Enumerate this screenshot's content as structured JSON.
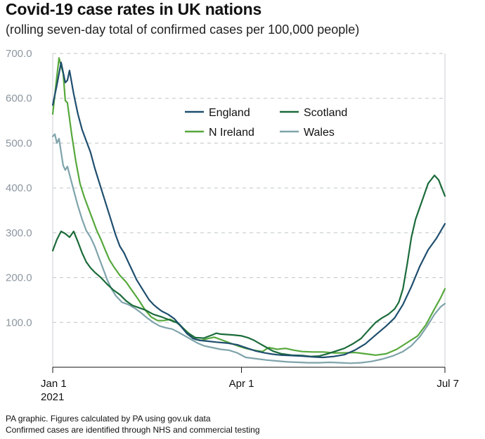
{
  "title": "Covid-19 case rates in UK nations",
  "subtitle": "(rolling seven-day total of confirmed cases per 100,000 people)",
  "footer": {
    "line1": "PA graphic. Figures calculated by PA using gov.uk data",
    "line2": "Confirmed cases are identified through NHS and commercial testing"
  },
  "chart_data": {
    "type": "line",
    "title": "Covid-19 case rates in UK nations",
    "subtitle": "(rolling seven-day total of confirmed cases per 100,000 people)",
    "x_range": [
      "2021-01-01",
      "2021-07-07"
    ],
    "x_ticks": [
      {
        "date": "2021-01-01",
        "label": "Jan 1",
        "sublabel": "2021"
      },
      {
        "date": "2021-04-01",
        "label": "Apr 1",
        "sublabel": ""
      },
      {
        "date": "2021-07-07",
        "label": "Jul 7",
        "sublabel": ""
      }
    ],
    "ylim": [
      0,
      700
    ],
    "y_ticks": [
      {
        "value": 100,
        "label": "100.0"
      },
      {
        "value": 200,
        "label": "200.0"
      },
      {
        "value": 300,
        "label": "300.0"
      },
      {
        "value": 400,
        "label": "400.0"
      },
      {
        "value": 500,
        "label": "500.0"
      },
      {
        "value": 600,
        "label": "600.0"
      },
      {
        "value": 700,
        "label": "700.0"
      }
    ],
    "grid": "horizontal-dashed",
    "legend": "top-center",
    "series": [
      {
        "name": "England",
        "color": "#1f4e6e",
        "points": [
          [
            "2021-01-01",
            585
          ],
          [
            "2021-01-03",
            630
          ],
          [
            "2021-01-05",
            680
          ],
          [
            "2021-01-07",
            635
          ],
          [
            "2021-01-08",
            640
          ],
          [
            "2021-01-09",
            662
          ],
          [
            "2021-01-11",
            610
          ],
          [
            "2021-01-13",
            565
          ],
          [
            "2021-01-15",
            530
          ],
          [
            "2021-01-17",
            505
          ],
          [
            "2021-01-19",
            480
          ],
          [
            "2021-01-21",
            445
          ],
          [
            "2021-01-23",
            415
          ],
          [
            "2021-01-25",
            385
          ],
          [
            "2021-01-27",
            355
          ],
          [
            "2021-01-29",
            325
          ],
          [
            "2021-01-31",
            295
          ],
          [
            "2021-02-02",
            270
          ],
          [
            "2021-02-04",
            255
          ],
          [
            "2021-02-06",
            235
          ],
          [
            "2021-02-08",
            215
          ],
          [
            "2021-02-10",
            195
          ],
          [
            "2021-02-12",
            180
          ],
          [
            "2021-02-14",
            165
          ],
          [
            "2021-02-16",
            150
          ],
          [
            "2021-02-18",
            140
          ],
          [
            "2021-02-20",
            132
          ],
          [
            "2021-02-22",
            125
          ],
          [
            "2021-02-25",
            118
          ],
          [
            "2021-02-28",
            108
          ],
          [
            "2021-03-03",
            92
          ],
          [
            "2021-03-06",
            75
          ],
          [
            "2021-03-09",
            64
          ],
          [
            "2021-03-12",
            60
          ],
          [
            "2021-03-16",
            58
          ],
          [
            "2021-03-20",
            56
          ],
          [
            "2021-03-25",
            54
          ],
          [
            "2021-03-30",
            50
          ],
          [
            "2021-04-04",
            42
          ],
          [
            "2021-04-08",
            36
          ],
          [
            "2021-04-12",
            32
          ],
          [
            "2021-04-16",
            29
          ],
          [
            "2021-04-20",
            27
          ],
          [
            "2021-04-25",
            26
          ],
          [
            "2021-04-30",
            25
          ],
          [
            "2021-05-05",
            23
          ],
          [
            "2021-05-10",
            22
          ],
          [
            "2021-05-15",
            24
          ],
          [
            "2021-05-20",
            28
          ],
          [
            "2021-05-25",
            38
          ],
          [
            "2021-05-30",
            52
          ],
          [
            "2021-06-04",
            72
          ],
          [
            "2021-06-09",
            92
          ],
          [
            "2021-06-13",
            110
          ],
          [
            "2021-06-17",
            140
          ],
          [
            "2021-06-21",
            180
          ],
          [
            "2021-06-25",
            225
          ],
          [
            "2021-06-29",
            262
          ],
          [
            "2021-07-03",
            288
          ],
          [
            "2021-07-07",
            320
          ]
        ]
      },
      {
        "name": "Scotland",
        "color": "#1b6b3a",
        "points": [
          [
            "2021-01-01",
            260
          ],
          [
            "2021-01-03",
            285
          ],
          [
            "2021-01-05",
            303
          ],
          [
            "2021-01-07",
            298
          ],
          [
            "2021-01-09",
            290
          ],
          [
            "2021-01-11",
            303
          ],
          [
            "2021-01-13",
            280
          ],
          [
            "2021-01-15",
            255
          ],
          [
            "2021-01-17",
            235
          ],
          [
            "2021-01-19",
            222
          ],
          [
            "2021-01-21",
            212
          ],
          [
            "2021-01-24",
            200
          ],
          [
            "2021-01-27",
            185
          ],
          [
            "2021-01-30",
            172
          ],
          [
            "2021-02-02",
            162
          ],
          [
            "2021-02-05",
            148
          ],
          [
            "2021-02-08",
            138
          ],
          [
            "2021-02-11",
            133
          ],
          [
            "2021-02-14",
            128
          ],
          [
            "2021-02-18",
            118
          ],
          [
            "2021-02-22",
            112
          ],
          [
            "2021-02-26",
            105
          ],
          [
            "2021-03-02",
            98
          ],
          [
            "2021-03-06",
            78
          ],
          [
            "2021-03-10",
            66
          ],
          [
            "2021-03-14",
            65
          ],
          [
            "2021-03-18",
            72
          ],
          [
            "2021-03-20",
            76
          ],
          [
            "2021-03-22",
            74
          ],
          [
            "2021-03-25",
            73
          ],
          [
            "2021-03-28",
            72
          ],
          [
            "2021-04-01",
            70
          ],
          [
            "2021-04-04",
            66
          ],
          [
            "2021-04-07",
            60
          ],
          [
            "2021-04-10",
            52
          ],
          [
            "2021-04-13",
            44
          ],
          [
            "2021-04-16",
            36
          ],
          [
            "2021-04-20",
            30
          ],
          [
            "2021-04-25",
            27
          ],
          [
            "2021-04-30",
            26
          ],
          [
            "2021-05-04",
            24
          ],
          [
            "2021-05-08",
            25
          ],
          [
            "2021-05-12",
            30
          ],
          [
            "2021-05-16",
            36
          ],
          [
            "2021-05-20",
            42
          ],
          [
            "2021-05-24",
            52
          ],
          [
            "2021-05-28",
            64
          ],
          [
            "2021-06-01",
            85
          ],
          [
            "2021-06-04",
            100
          ],
          [
            "2021-06-07",
            110
          ],
          [
            "2021-06-10",
            118
          ],
          [
            "2021-06-13",
            130
          ],
          [
            "2021-06-15",
            145
          ],
          [
            "2021-06-17",
            175
          ],
          [
            "2021-06-19",
            230
          ],
          [
            "2021-06-21",
            290
          ],
          [
            "2021-06-23",
            330
          ],
          [
            "2021-06-26",
            370
          ],
          [
            "2021-06-29",
            410
          ],
          [
            "2021-07-02",
            428
          ],
          [
            "2021-07-04",
            418
          ],
          [
            "2021-07-07",
            382
          ]
        ]
      },
      {
        "name": "N Ireland",
        "color": "#56a83c",
        "points": [
          [
            "2021-01-01",
            565
          ],
          [
            "2021-01-03",
            650
          ],
          [
            "2021-01-04",
            690
          ],
          [
            "2021-01-06",
            655
          ],
          [
            "2021-01-07",
            595
          ],
          [
            "2021-01-08",
            590
          ],
          [
            "2021-01-10",
            520
          ],
          [
            "2021-01-12",
            460
          ],
          [
            "2021-01-14",
            410
          ],
          [
            "2021-01-16",
            380
          ],
          [
            "2021-01-18",
            355
          ],
          [
            "2021-01-20",
            330
          ],
          [
            "2021-01-22",
            305
          ],
          [
            "2021-01-24",
            285
          ],
          [
            "2021-01-26",
            262
          ],
          [
            "2021-01-28",
            240
          ],
          [
            "2021-01-30",
            225
          ],
          [
            "2021-02-02",
            205
          ],
          [
            "2021-02-05",
            190
          ],
          [
            "2021-02-08",
            170
          ],
          [
            "2021-02-11",
            150
          ],
          [
            "2021-02-14",
            128
          ],
          [
            "2021-02-17",
            112
          ],
          [
            "2021-02-20",
            104
          ],
          [
            "2021-02-23",
            104
          ],
          [
            "2021-02-26",
            107
          ],
          [
            "2021-03-01",
            100
          ],
          [
            "2021-03-04",
            88
          ],
          [
            "2021-03-07",
            75
          ],
          [
            "2021-03-10",
            62
          ],
          [
            "2021-03-13",
            60
          ],
          [
            "2021-03-16",
            64
          ],
          [
            "2021-03-19",
            67
          ],
          [
            "2021-03-22",
            62
          ],
          [
            "2021-03-26",
            55
          ],
          [
            "2021-03-30",
            48
          ],
          [
            "2021-04-03",
            42
          ],
          [
            "2021-04-07",
            38
          ],
          [
            "2021-04-11",
            35
          ],
          [
            "2021-04-14",
            44
          ],
          [
            "2021-04-18",
            40
          ],
          [
            "2021-04-22",
            42
          ],
          [
            "2021-04-26",
            38
          ],
          [
            "2021-04-30",
            35
          ],
          [
            "2021-05-05",
            34
          ],
          [
            "2021-05-10",
            34
          ],
          [
            "2021-05-15",
            32
          ],
          [
            "2021-05-20",
            32
          ],
          [
            "2021-05-25",
            33
          ],
          [
            "2021-05-30",
            30
          ],
          [
            "2021-06-04",
            27
          ],
          [
            "2021-06-09",
            30
          ],
          [
            "2021-06-14",
            40
          ],
          [
            "2021-06-19",
            55
          ],
          [
            "2021-06-24",
            70
          ],
          [
            "2021-06-28",
            95
          ],
          [
            "2021-07-02",
            130
          ],
          [
            "2021-07-05",
            155
          ],
          [
            "2021-07-07",
            175
          ]
        ]
      },
      {
        "name": "Wales",
        "color": "#7fa3ab",
        "points": [
          [
            "2021-01-01",
            515
          ],
          [
            "2021-01-02",
            520
          ],
          [
            "2021-01-03",
            500
          ],
          [
            "2021-01-04",
            510
          ],
          [
            "2021-01-05",
            480
          ],
          [
            "2021-01-06",
            450
          ],
          [
            "2021-01-07",
            440
          ],
          [
            "2021-01-08",
            448
          ],
          [
            "2021-01-09",
            430
          ],
          [
            "2021-01-11",
            395
          ],
          [
            "2021-01-13",
            360
          ],
          [
            "2021-01-15",
            330
          ],
          [
            "2021-01-17",
            305
          ],
          [
            "2021-01-19",
            290
          ],
          [
            "2021-01-21",
            270
          ],
          [
            "2021-01-23",
            245
          ],
          [
            "2021-01-25",
            220
          ],
          [
            "2021-01-27",
            195
          ],
          [
            "2021-01-29",
            175
          ],
          [
            "2021-01-31",
            160
          ],
          [
            "2021-02-03",
            145
          ],
          [
            "2021-02-06",
            140
          ],
          [
            "2021-02-09",
            132
          ],
          [
            "2021-02-12",
            122
          ],
          [
            "2021-02-15",
            110
          ],
          [
            "2021-02-18",
            100
          ],
          [
            "2021-02-21",
            92
          ],
          [
            "2021-02-24",
            88
          ],
          [
            "2021-02-27",
            85
          ],
          [
            "2021-03-02",
            78
          ],
          [
            "2021-03-05",
            70
          ],
          [
            "2021-03-08",
            62
          ],
          [
            "2021-03-11",
            54
          ],
          [
            "2021-03-14",
            48
          ],
          [
            "2021-03-18",
            44
          ],
          [
            "2021-03-22",
            40
          ],
          [
            "2021-03-26",
            38
          ],
          [
            "2021-03-30",
            32
          ],
          [
            "2021-04-03",
            22
          ],
          [
            "2021-04-08",
            19
          ],
          [
            "2021-04-13",
            16
          ],
          [
            "2021-04-18",
            14
          ],
          [
            "2021-04-23",
            12
          ],
          [
            "2021-04-28",
            11
          ],
          [
            "2021-05-03",
            10
          ],
          [
            "2021-05-08",
            10
          ],
          [
            "2021-05-13",
            11
          ],
          [
            "2021-05-18",
            10
          ],
          [
            "2021-05-23",
            9
          ],
          [
            "2021-05-28",
            10
          ],
          [
            "2021-06-02",
            13
          ],
          [
            "2021-06-07",
            18
          ],
          [
            "2021-06-12",
            25
          ],
          [
            "2021-06-17",
            35
          ],
          [
            "2021-06-21",
            48
          ],
          [
            "2021-06-25",
            68
          ],
          [
            "2021-06-29",
            95
          ],
          [
            "2021-07-02",
            118
          ],
          [
            "2021-07-05",
            135
          ],
          [
            "2021-07-07",
            142
          ]
        ]
      }
    ]
  }
}
